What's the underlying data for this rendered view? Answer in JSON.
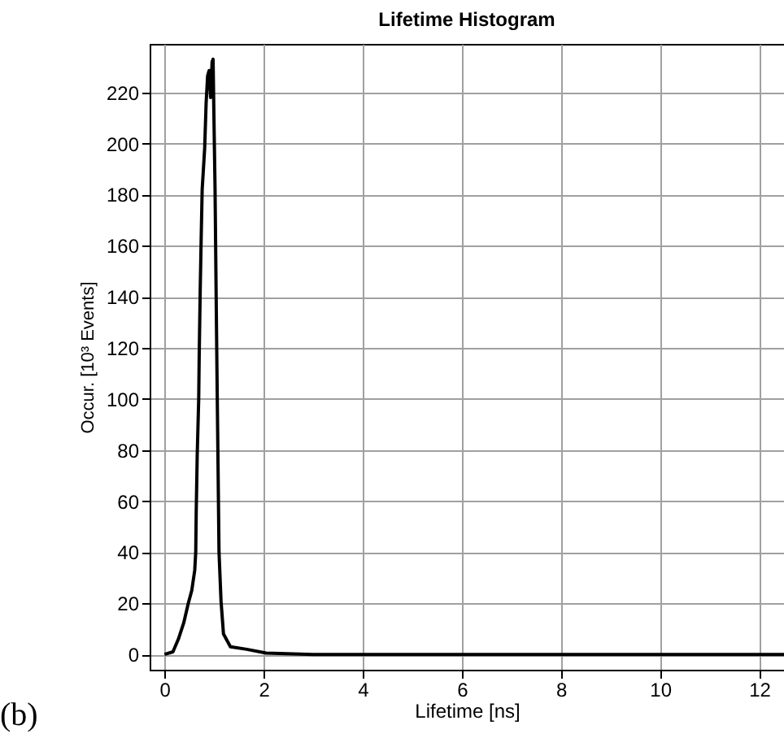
{
  "chart_data": {
    "type": "line",
    "title": "Lifetime Histogram",
    "xlabel": "Lifetime [ns]",
    "ylabel": "Occur. [10³ Events]",
    "annotations": [
      "(b)"
    ],
    "x": [
      0,
      0.17,
      0.28,
      0.39,
      0.48,
      0.55,
      0.61,
      0.63,
      0.64,
      0.66,
      0.69,
      0.7,
      0.72,
      0.74,
      0.76,
      0.81,
      0.84,
      0.87,
      0.9,
      0.93,
      0.96,
      0.98,
      1.0,
      1.02,
      1.04,
      1.06,
      1.08,
      1.1,
      1.14,
      1.19,
      1.33,
      1.66,
      2.05,
      3,
      12.5
    ],
    "series": [
      {
        "color": "#000000",
        "values": [
          0,
          1,
          6,
          12.5,
          20,
          25,
          33,
          40,
          56,
          78,
          100,
          117,
          142,
          163,
          182,
          198,
          216,
          226.5,
          228.6,
          218,
          232,
          233,
          207,
          182,
          144,
          108,
          74,
          40,
          21,
          8,
          3,
          2,
          0.5,
          0,
          0
        ]
      }
    ],
    "xlim": [
      -0.3,
      12.5
    ],
    "xticks": [
      0,
      2,
      4,
      6,
      8,
      10,
      12
    ],
    "ylim": [
      -6,
      239
    ],
    "yticks": [
      0,
      20,
      40,
      60,
      80,
      100,
      120,
      140,
      160,
      180,
      200,
      220
    ],
    "grid": true,
    "legend": false,
    "marker": "none",
    "line_style": "solid"
  }
}
